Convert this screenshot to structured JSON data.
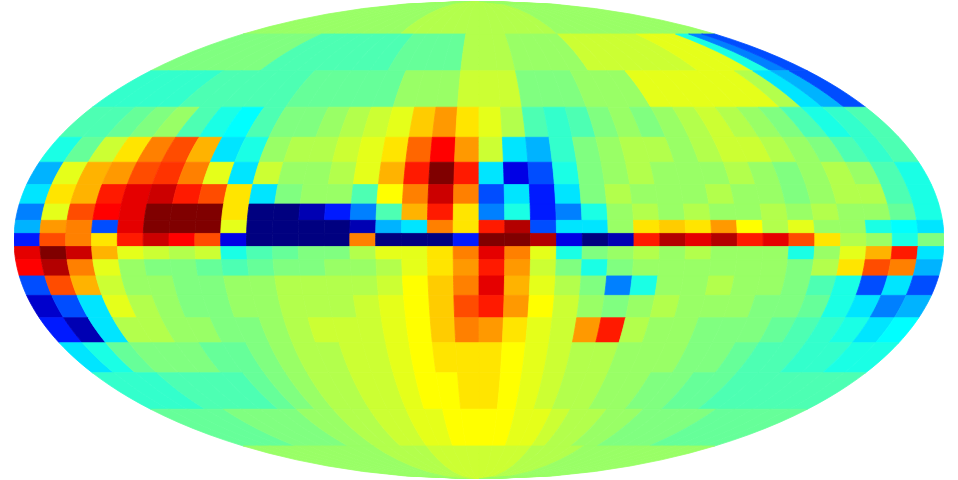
{
  "chart_data": {
    "type": "heatmap",
    "tick_labels": false,
    "grid": false,
    "xlim": [
      180,
      -180
    ],
    "ylim": [
      -90,
      90
    ],
    "x_edges": [
      180,
      170,
      160,
      150,
      140,
      130,
      120,
      110,
      100,
      90,
      80,
      70,
      60,
      50,
      40,
      30,
      20,
      10,
      0,
      -10,
      -20,
      -30,
      -40,
      -50,
      -60,
      -70,
      -80,
      -90,
      -100,
      -110,
      -120,
      -130,
      -140,
      -150,
      -160,
      -170,
      -180
    ],
    "y_edges": [
      90,
      70,
      55,
      42,
      32,
      24,
      17,
      11,
      6,
      2,
      -2,
      -6,
      -11,
      -17,
      -24,
      -32,
      -42,
      -55,
      -70,
      -90
    ],
    "colorbar": {
      "range": [
        -1,
        1
      ]
    },
    "cells": [
      [
        0.05,
        0.05,
        0.05,
        0.05,
        0.05,
        0.05,
        0.05,
        0.05,
        0.05,
        0.05,
        0.05,
        0.05,
        0.1,
        0.1,
        0.1,
        0.1,
        0.1,
        0.1,
        0.1,
        0.1,
        0.1,
        0.1,
        0.1,
        0.1,
        0.05,
        0.05,
        0.05,
        0.05,
        0.05,
        0.05,
        0.05,
        0.05,
        0.05,
        0.05,
        0.05,
        0.05
      ],
      [
        0,
        0,
        0,
        0,
        0,
        0,
        -0.1,
        -0.1,
        -0.1,
        -0.1,
        -0.1,
        -0.1,
        -0.1,
        -0.05,
        -0.05,
        -0.05,
        -0.05,
        0.1,
        0.1,
        0.1,
        0.05,
        0.05,
        0.05,
        0.05,
        0.15,
        0.15,
        0.15,
        0.15,
        0.15,
        0.15,
        0.2,
        0.2,
        0.2,
        -0.2,
        -0.5,
        -0.6
      ],
      [
        -0.15,
        -0.15,
        -0.15,
        -0.15,
        -0.1,
        -0.1,
        -0.1,
        -0.1,
        -0.1,
        -0.05,
        -0.05,
        -0.05,
        -0.05,
        -0.05,
        0.05,
        0.05,
        0.05,
        0.15,
        0.15,
        0.15,
        0,
        0,
        0,
        0.05,
        0.05,
        0.05,
        0.2,
        0.2,
        0.2,
        0.2,
        0.2,
        0.2,
        0.1,
        -0.3,
        -0.4,
        -0.6
      ],
      [
        -0.1,
        -0.1,
        -0.05,
        0,
        0.05,
        -0.1,
        -0.2,
        -0.25,
        -0.1,
        0,
        0,
        0.05,
        0.1,
        0.15,
        0.2,
        0.35,
        0.45,
        0.3,
        0.2,
        0.1,
        -0.1,
        -0.15,
        -0.1,
        0,
        0.05,
        0,
        0.05,
        0.1,
        0.15,
        0.1,
        0.05,
        0,
        -0.1,
        -0.2,
        -0.15,
        -0.1
      ],
      [
        -0.2,
        -0.05,
        0.15,
        0.3,
        0.5,
        0.6,
        0.4,
        -0.3,
        -0.2,
        0.05,
        0.1,
        0.1,
        0.15,
        0.2,
        0.3,
        0.55,
        0.75,
        0.45,
        0.15,
        -0.3,
        -0.4,
        -0.15,
        0,
        0.05,
        0.1,
        0.1,
        0.05,
        0.1,
        0.15,
        0.15,
        0.1,
        0.05,
        0,
        -0.1,
        -0.15,
        -0.1
      ],
      [
        -0.4,
        0.2,
        0.4,
        0.45,
        0.6,
        0.65,
        0.5,
        0.2,
        -0.3,
        0.15,
        0.05,
        0.05,
        0.1,
        0.2,
        0.4,
        0.7,
        1.0,
        0.7,
        -0.3,
        -0.8,
        -0.6,
        -0.2,
        0,
        0.05,
        0.1,
        0.05,
        0.05,
        0.05,
        0.1,
        0.05,
        0,
        0.05,
        0.1,
        0.05,
        -0.1,
        -0.2
      ],
      [
        -0.3,
        0.3,
        0.4,
        0.7,
        0.8,
        0.85,
        0.7,
        0.6,
        0.3,
        -0.3,
        0,
        0.05,
        0.05,
        -0.1,
        0.25,
        0.5,
        0.85,
        0.5,
        -0.6,
        -0.3,
        -0.7,
        -0.3,
        0,
        0.1,
        0.05,
        0.05,
        0.05,
        0.1,
        0.05,
        0.05,
        0,
        0.05,
        0.1,
        0.1,
        -0.1,
        -0.2
      ],
      [
        -0.5,
        0.2,
        0.6,
        0.75,
        0.8,
        1.0,
        1.0,
        1.0,
        0.3,
        -1.0,
        -1.0,
        -0.9,
        -0.7,
        -0.5,
        -0.1,
        0.4,
        0.7,
        0.3,
        -0.5,
        -0.2,
        -0.7,
        -0.5,
        -0.2,
        0.05,
        0.1,
        0.05,
        0.1,
        0.05,
        0.05,
        0.1,
        0.05,
        0.1,
        0.05,
        0.05,
        -0.05,
        -0.2
      ],
      [
        -0.4,
        0.45,
        0.5,
        -0.6,
        0.8,
        1.0,
        1.0,
        1.0,
        0.2,
        -1.0,
        -1.0,
        -1.0,
        -1.0,
        -0.9,
        -0.4,
        -0.3,
        0.5,
        0.3,
        0.7,
        0.9,
        -0.6,
        -0.3,
        -0.3,
        0.05,
        0.3,
        0.35,
        0.3,
        0.45,
        0.25,
        0.1,
        0.2,
        0.05,
        0.05,
        -0.2,
        -0.25,
        -0.3
      ],
      [
        -0.7,
        0.6,
        0.5,
        0.3,
        0.7,
        0.85,
        0.75,
        0.6,
        -0.8,
        -1.0,
        -1.0,
        -1.0,
        -1.0,
        0.5,
        -1.0,
        -1.0,
        -1.0,
        -0.7,
        1.0,
        1.0,
        0.9,
        -0.8,
        -1.0,
        -0.9,
        0.7,
        0.9,
        0.8,
        0.9,
        0.7,
        0.8,
        0.6,
        0.3,
        0.1,
        0.05,
        -0.2,
        0
      ],
      [
        0.8,
        1.0,
        0.85,
        0.4,
        0.2,
        0.15,
        0.1,
        0.15,
        -0.2,
        -0.1,
        -0.05,
        0,
        0,
        0.1,
        0.2,
        0.2,
        0.3,
        0.5,
        0.8,
        0.5,
        0.2,
        -0.2,
        0,
        0.05,
        0.1,
        0.05,
        0.1,
        0.05,
        0.05,
        0.05,
        -0.2,
        0.05,
        0.2,
        0.4,
        0.7,
        -0.3
      ],
      [
        0.75,
        0.9,
        0.5,
        0.2,
        0.05,
        0,
        0,
        -0.05,
        -0.1,
        -0.05,
        0,
        0,
        0.05,
        0.05,
        0.1,
        0.2,
        0.3,
        0.45,
        0.7,
        0.45,
        0.15,
        0,
        -0.2,
        0,
        0.05,
        0.05,
        0.05,
        0.05,
        0.05,
        0.05,
        0,
        0.1,
        0.3,
        0.6,
        0.5,
        -0.4
      ],
      [
        -0.6,
        0.6,
        0.4,
        0.15,
        0.05,
        0.05,
        0,
        0,
        0.05,
        0.05,
        0.1,
        0.1,
        0.1,
        0.1,
        0.15,
        0.25,
        0.35,
        0.5,
        0.8,
        0.4,
        0.2,
        0.1,
        0,
        -0.5,
        -0.2,
        0.05,
        0.05,
        0.1,
        0.05,
        0.05,
        0,
        -0.1,
        -0.2,
        -0.6,
        -0.3,
        -0.6
      ],
      [
        -0.85,
        -0.6,
        -0.3,
        0.2,
        0.1,
        0.05,
        0,
        0,
        0.05,
        0.05,
        0.1,
        0.1,
        0.1,
        0.15,
        0.2,
        0.25,
        0.35,
        0.6,
        0.7,
        0.45,
        0.25,
        0.15,
        0.05,
        0,
        0.05,
        0.1,
        0.05,
        0.05,
        0.05,
        0,
        0,
        -0.05,
        -0.2,
        -0.3,
        -0.5,
        -0.4
      ],
      [
        -0.7,
        -0.9,
        -0.3,
        0.1,
        0.1,
        0.05,
        0.05,
        0,
        0,
        0.05,
        0.1,
        0.15,
        0.15,
        0.15,
        0.2,
        0.25,
        0.35,
        0.5,
        0.45,
        0.3,
        0.2,
        0.15,
        0.45,
        0.7,
        0.1,
        0.05,
        0.05,
        0,
        0,
        0,
        -0.05,
        -0.1,
        -0.15,
        -0.2,
        -0.3,
        -0.25
      ],
      [
        -0.3,
        -0.2,
        -0.05,
        0,
        0,
        0,
        -0.05,
        -0.05,
        0,
        0.05,
        0.1,
        0.1,
        0.15,
        0.15,
        0.2,
        0.25,
        0.3,
        0.3,
        0.3,
        0.25,
        0.2,
        0.15,
        0.1,
        0.1,
        0.05,
        0.05,
        0.05,
        0,
        0,
        -0.05,
        -0.1,
        -0.1,
        -0.15,
        -0.15,
        -0.2,
        -0.2
      ],
      [
        -0.15,
        -0.15,
        -0.15,
        -0.1,
        -0.1,
        -0.1,
        -0.1,
        -0.05,
        0,
        0.05,
        0.1,
        0.1,
        0.15,
        0.15,
        0.2,
        0.25,
        0.25,
        0.3,
        0.3,
        0.25,
        0.2,
        0.15,
        0.1,
        0.1,
        0.05,
        0.05,
        0,
        0,
        -0.05,
        -0.05,
        -0.1,
        -0.1,
        -0.1,
        -0.1,
        -0.1,
        -0.1
      ],
      [
        -0.05,
        -0.05,
        -0.05,
        -0.05,
        0,
        0,
        0,
        0,
        0.05,
        0.05,
        0.1,
        0.1,
        0.15,
        0.15,
        0.2,
        0.2,
        0.25,
        0.25,
        0.25,
        0.25,
        0.2,
        0.2,
        0.15,
        0.1,
        0.1,
        0.05,
        0.05,
        0,
        0,
        0,
        0,
        -0.05,
        -0.05,
        -0.05,
        -0.05,
        -0.05
      ],
      [
        0.05,
        0.05,
        0.05,
        0.05,
        0.05,
        0.05,
        0.05,
        0.05,
        0.05,
        0.05,
        0.1,
        0.1,
        0.1,
        0.1,
        0.15,
        0.15,
        0.15,
        0.15,
        0.15,
        0.15,
        0.15,
        0.15,
        0.1,
        0.1,
        0.1,
        0.1,
        0.05,
        0.05,
        0.05,
        0.05,
        0.05,
        0.05,
        0.05,
        0.05,
        0.05,
        0.05
      ]
    ]
  }
}
